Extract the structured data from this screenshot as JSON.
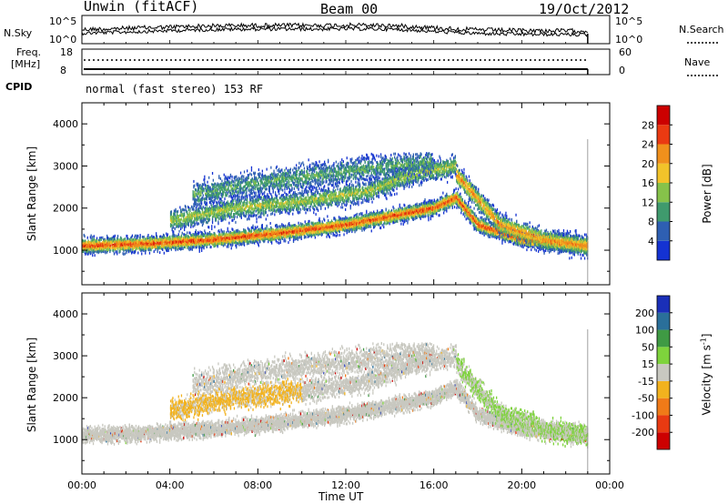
{
  "header": {
    "station": "Unwin (fitACF)",
    "beam": "Beam 00",
    "date": "19/Oct/2012"
  },
  "top_panels": {
    "nsky_label": "N.Sky",
    "nsky_ticks": [
      "10^5",
      "10^0"
    ],
    "nsearch_label": "N.Search",
    "nsearch_ticks": [
      "10^5",
      "10^0"
    ],
    "freq_label": "Freq.",
    "freq_unit": "[MHz]",
    "freq_ticks": [
      "18",
      "8"
    ],
    "nave_label": "Nave",
    "nave_ticks": [
      "60",
      "0"
    ],
    "cpid_label": "CPID",
    "cpid_text": "normal (fast stereo) 153 RF"
  },
  "chart_data": [
    {
      "type": "heatmap",
      "name": "power",
      "ylabel": "Slant Range [km]",
      "xlabel": "",
      "yticks": [
        1000,
        2000,
        3000,
        4000
      ],
      "ylim": [
        180,
        4500
      ],
      "x_ticks": [
        "00:00",
        "04:00",
        "08:00",
        "12:00",
        "16:00",
        "20:00",
        "00:00"
      ],
      "xlim_hours": [
        0,
        24
      ],
      "data_end_hours": 23.0,
      "colorbar": {
        "label": "Power [dB]",
        "ticks": [
          "4",
          "8",
          "12",
          "16",
          "20",
          "24",
          "28"
        ],
        "colors": [
          "#1432d2",
          "#2e5fb2",
          "#3f9a6d",
          "#86c24a",
          "#f2c32a",
          "#f0901c",
          "#ea3a12",
          "#cc0000"
        ]
      },
      "bands": [
        {
          "name": "main-layer",
          "range_km": [
            [
              0,
              1100
            ],
            [
              3,
              1150
            ],
            [
              6,
              1250
            ],
            [
              9,
              1400
            ],
            [
              12,
              1600
            ],
            [
              14,
              1800
            ],
            [
              16,
              2000
            ],
            [
              17,
              2250
            ],
            [
              18,
              1600
            ],
            [
              20,
              1250
            ],
            [
              23,
              1100
            ]
          ],
          "width_km": 180,
          "strength": 0.85
        },
        {
          "name": "upper-1",
          "range_km": [
            [
              4,
              1700
            ],
            [
              7,
              2000
            ],
            [
              10,
              2150
            ],
            [
              13,
              2400
            ],
            [
              15,
              2800
            ],
            [
              17,
              3000
            ]
          ],
          "width_km": 260,
          "strength": 0.45
        },
        {
          "name": "upper-2",
          "range_km": [
            [
              5,
              2300
            ],
            [
              8,
              2600
            ],
            [
              11,
              2800
            ],
            [
              14,
              3000
            ],
            [
              16,
              3100
            ]
          ],
          "width_km": 300,
          "strength": 0.3
        },
        {
          "name": "evening-arc",
          "range_km": [
            [
              17,
              2800
            ],
            [
              18,
              2200
            ],
            [
              19,
              1600
            ],
            [
              21,
              1250
            ],
            [
              23,
              1100
            ]
          ],
          "width_km": 250,
          "strength": 0.7
        }
      ]
    },
    {
      "type": "heatmap",
      "name": "velocity",
      "ylabel": "Slant Range [km]",
      "xlabel": "Time UT",
      "yticks": [
        1000,
        2000,
        3000,
        4000
      ],
      "ylim": [
        180,
        4500
      ],
      "x_ticks": [
        "00:00",
        "04:00",
        "08:00",
        "12:00",
        "16:00",
        "20:00",
        "00:00"
      ],
      "xlim_hours": [
        0,
        24
      ],
      "data_end_hours": 23.0,
      "colorbar": {
        "label": "Velocity [m s^-1]",
        "ticks": [
          "200",
          "100",
          "50",
          "15",
          "-15",
          "-50",
          "-100",
          "-200"
        ],
        "colors": [
          "#1a2fb8",
          "#2a6f9a",
          "#3f9a44",
          "#7ed33c",
          "#c8c8c0",
          "#f2b21e",
          "#f07a18",
          "#e83a12",
          "#cc0000"
        ]
      }
    }
  ]
}
